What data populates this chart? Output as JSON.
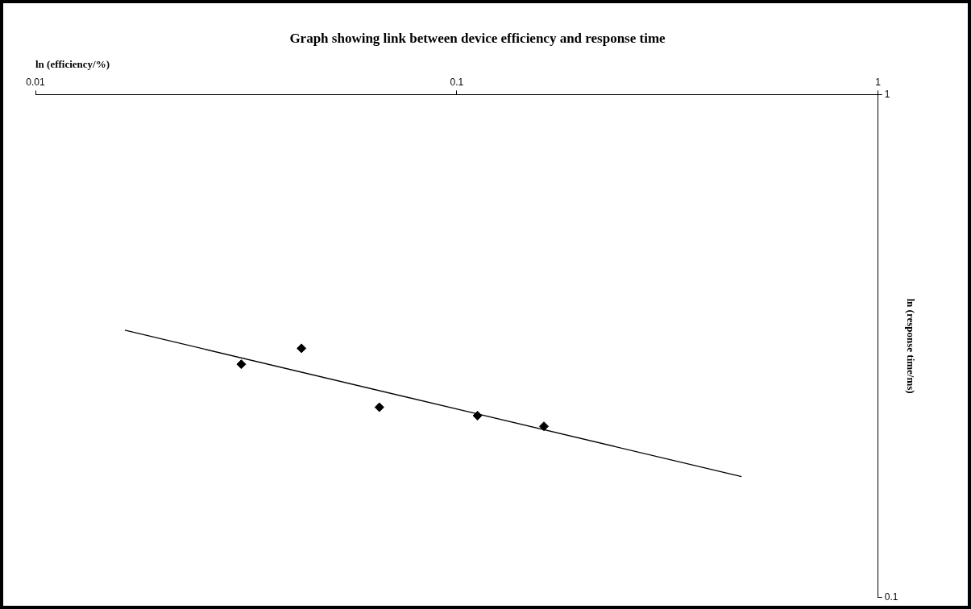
{
  "chart_data": {
    "type": "scatter",
    "title": "Graph showing link between device efficiency and response time",
    "xlabel": "ln (efficiency/%)",
    "ylabel": "ln (response time/ms)",
    "log": "xy",
    "grid": false,
    "marker": "diamond",
    "xlim": [
      0.01,
      1
    ],
    "xticks": [
      0.01,
      0.1,
      1
    ],
    "ylim": [
      0.1,
      1
    ],
    "yticks": [
      0.1,
      1
    ],
    "series": [
      {
        "color": "#000000",
        "x": [
          0.0308,
          0.0428,
          0.0655,
          0.112,
          0.161
        ],
        "values": [
          0.291,
          0.313,
          0.239,
          0.23,
          0.219
        ]
      },
      {
        "type": "line",
        "color": "#000000",
        "marker": "none",
        "line_style": "solid",
        "x": [
          0.0163,
          0.474
        ],
        "values": [
          0.34,
          0.174
        ]
      }
    ]
  }
}
